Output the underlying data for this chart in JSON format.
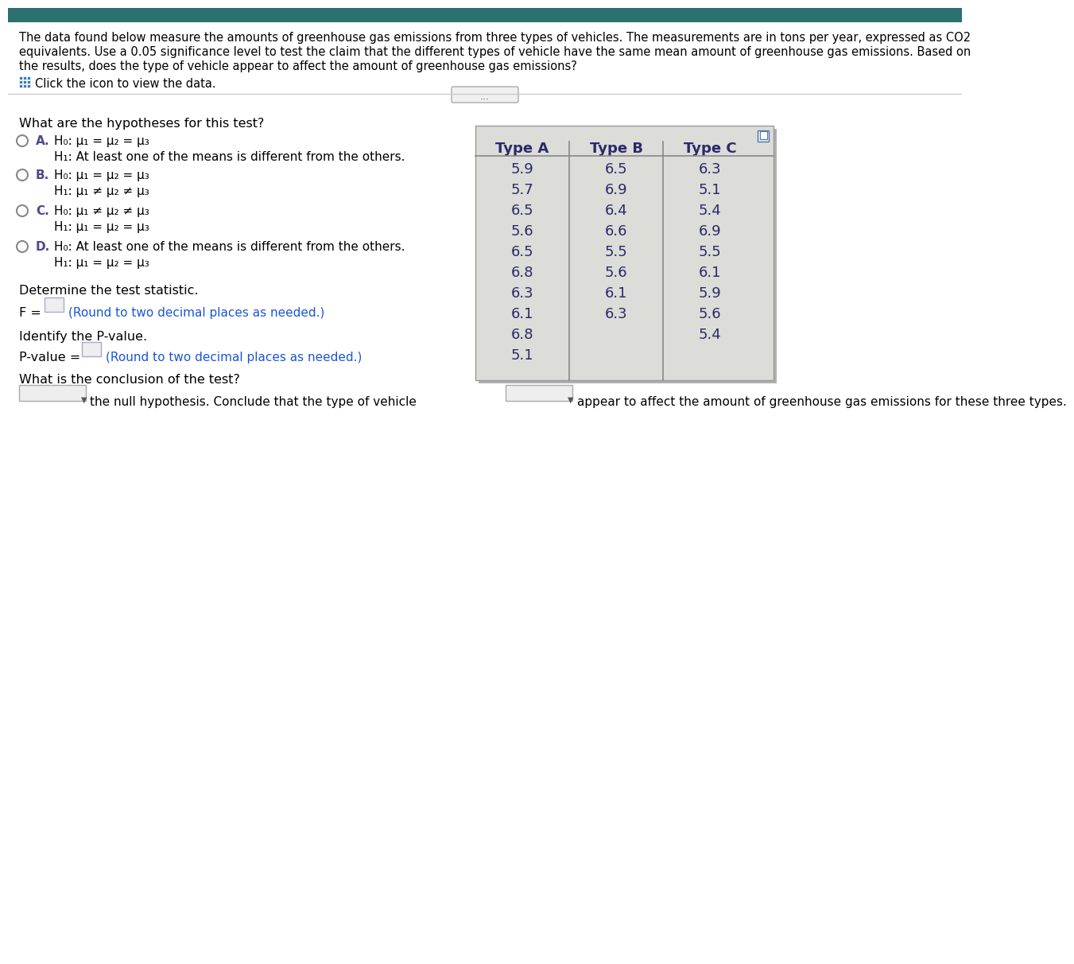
{
  "bg_color": "#ffffff",
  "header_bg": "#2d7070",
  "intro_text_line1": "The data found below measure the amounts of greenhouse gas emissions from three types of vehicles. The measurements are in tons per year, expressed as CO2",
  "intro_text_line2": "equivalents. Use a 0.05 significance level to test the claim that the different types of vehicle have the same mean amount of greenhouse gas emissions. Based on",
  "intro_text_line3": "the results, does the type of vehicle appear to affect the amount of greenhouse gas emissions?",
  "click_icon_text": "Click the icon to view the data.",
  "question1": "What are the hypotheses for this test?",
  "option_A_label": "A.",
  "option_A_H0": "H₀: μ₁ = μ₂ = μ₃",
  "option_A_H1": "H₁: At least one of the means is different from the others.",
  "option_B_label": "B.",
  "option_B_H0": "H₀: μ₁ = μ₂ = μ₃",
  "option_B_H1": "H₁: μ₁ ≠ μ₂ ≠ μ₃",
  "option_C_label": "C.",
  "option_C_H0": "H₀: μ₁ ≠ μ₂ ≠ μ₃",
  "option_C_H1": "H₁: μ₁ = μ₂ = μ₃",
  "option_D_label": "D.",
  "option_D_H0": "H₀: At least one of the means is different from the others.",
  "option_D_H1": "H₁: μ₁ = μ₂ = μ₃",
  "determine_stat": "Determine the test statistic.",
  "identify_p": "Identify the P-value.",
  "conclusion_q": "What is the conclusion of the test?",
  "text_color_black": "#000000",
  "text_color_blue": "#1a56d6",
  "option_color": "#4a4a8a",
  "circle_color": "#888888",
  "table_text": "#2a2a6a",
  "type_A": [
    5.9,
    5.7,
    6.5,
    5.6,
    6.5,
    6.8,
    6.3,
    6.1,
    6.8,
    5.1
  ],
  "type_B": [
    6.5,
    6.9,
    6.4,
    6.6,
    5.5,
    5.6,
    6.1,
    6.3
  ],
  "type_C": [
    6.3,
    5.1,
    5.4,
    6.9,
    5.5,
    6.1,
    5.9,
    5.6,
    5.4
  ]
}
